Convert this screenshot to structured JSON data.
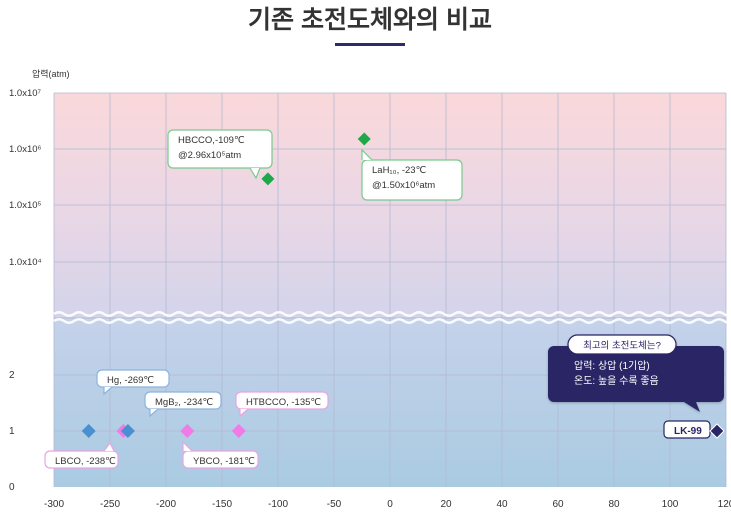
{
  "chart_data": {
    "type": "scatter",
    "title": "기존 초전도체와의 비교",
    "ylabel": "압력(atm)",
    "xlabel": "",
    "xlim": [
      -300,
      120
    ],
    "x_ticks": [
      "-300",
      "-250",
      "-200",
      "-150",
      "-100",
      "-50",
      "0",
      "20",
      "40",
      "60",
      "80",
      "100",
      "120"
    ],
    "y_ticks_low": [
      "0",
      "1",
      "2"
    ],
    "y_ticks_high": [
      "1.0x10⁴",
      "1.0x10⁵",
      "1.0x10⁶",
      "1.0x10⁷"
    ],
    "axis_break": true,
    "grid": true,
    "colors": {
      "title_underline": "#2d2a6e",
      "high_band_top": "#f9d6d8",
      "low_band": "#b2cfe4",
      "blue_point": "#4a8fd0",
      "pink_point": "#f07ae6",
      "green_point": "#1fa84a",
      "lk99_point": "#2b2566",
      "callout_box": "#2b2566"
    },
    "points": [
      {
        "label": "Hg, -269℃",
        "x": -269,
        "y": 1,
        "color": "blue"
      },
      {
        "label": "LBCO, -238℃",
        "x": -238,
        "y": 1,
        "color": "pink"
      },
      {
        "label": "MgB₂, -234℃",
        "x": -234,
        "y": 1,
        "color": "blue"
      },
      {
        "label": "YBCO, -181℃",
        "x": -181,
        "y": 1,
        "color": "pink"
      },
      {
        "label": "HTBCCO, -135℃",
        "x": -135,
        "y": 1,
        "color": "pink"
      },
      {
        "label": "HBCCO,-109℃",
        "sublabel": "@2.96x10⁵atm",
        "x": -109,
        "y": 296000,
        "color": "green"
      },
      {
        "label": "LaH₁₀, -23℃",
        "sublabel": "@1.50x10⁶atm",
        "x": -23,
        "y": 1500000,
        "color": "green"
      },
      {
        "label": "LK-99",
        "x": 127,
        "y": 1,
        "color": "lk99"
      }
    ],
    "callout": {
      "title": "최고의 초전도체는?",
      "line1": "압력: 상압 (1기압)",
      "line2": "온도: 높을 수록 좋음"
    }
  }
}
